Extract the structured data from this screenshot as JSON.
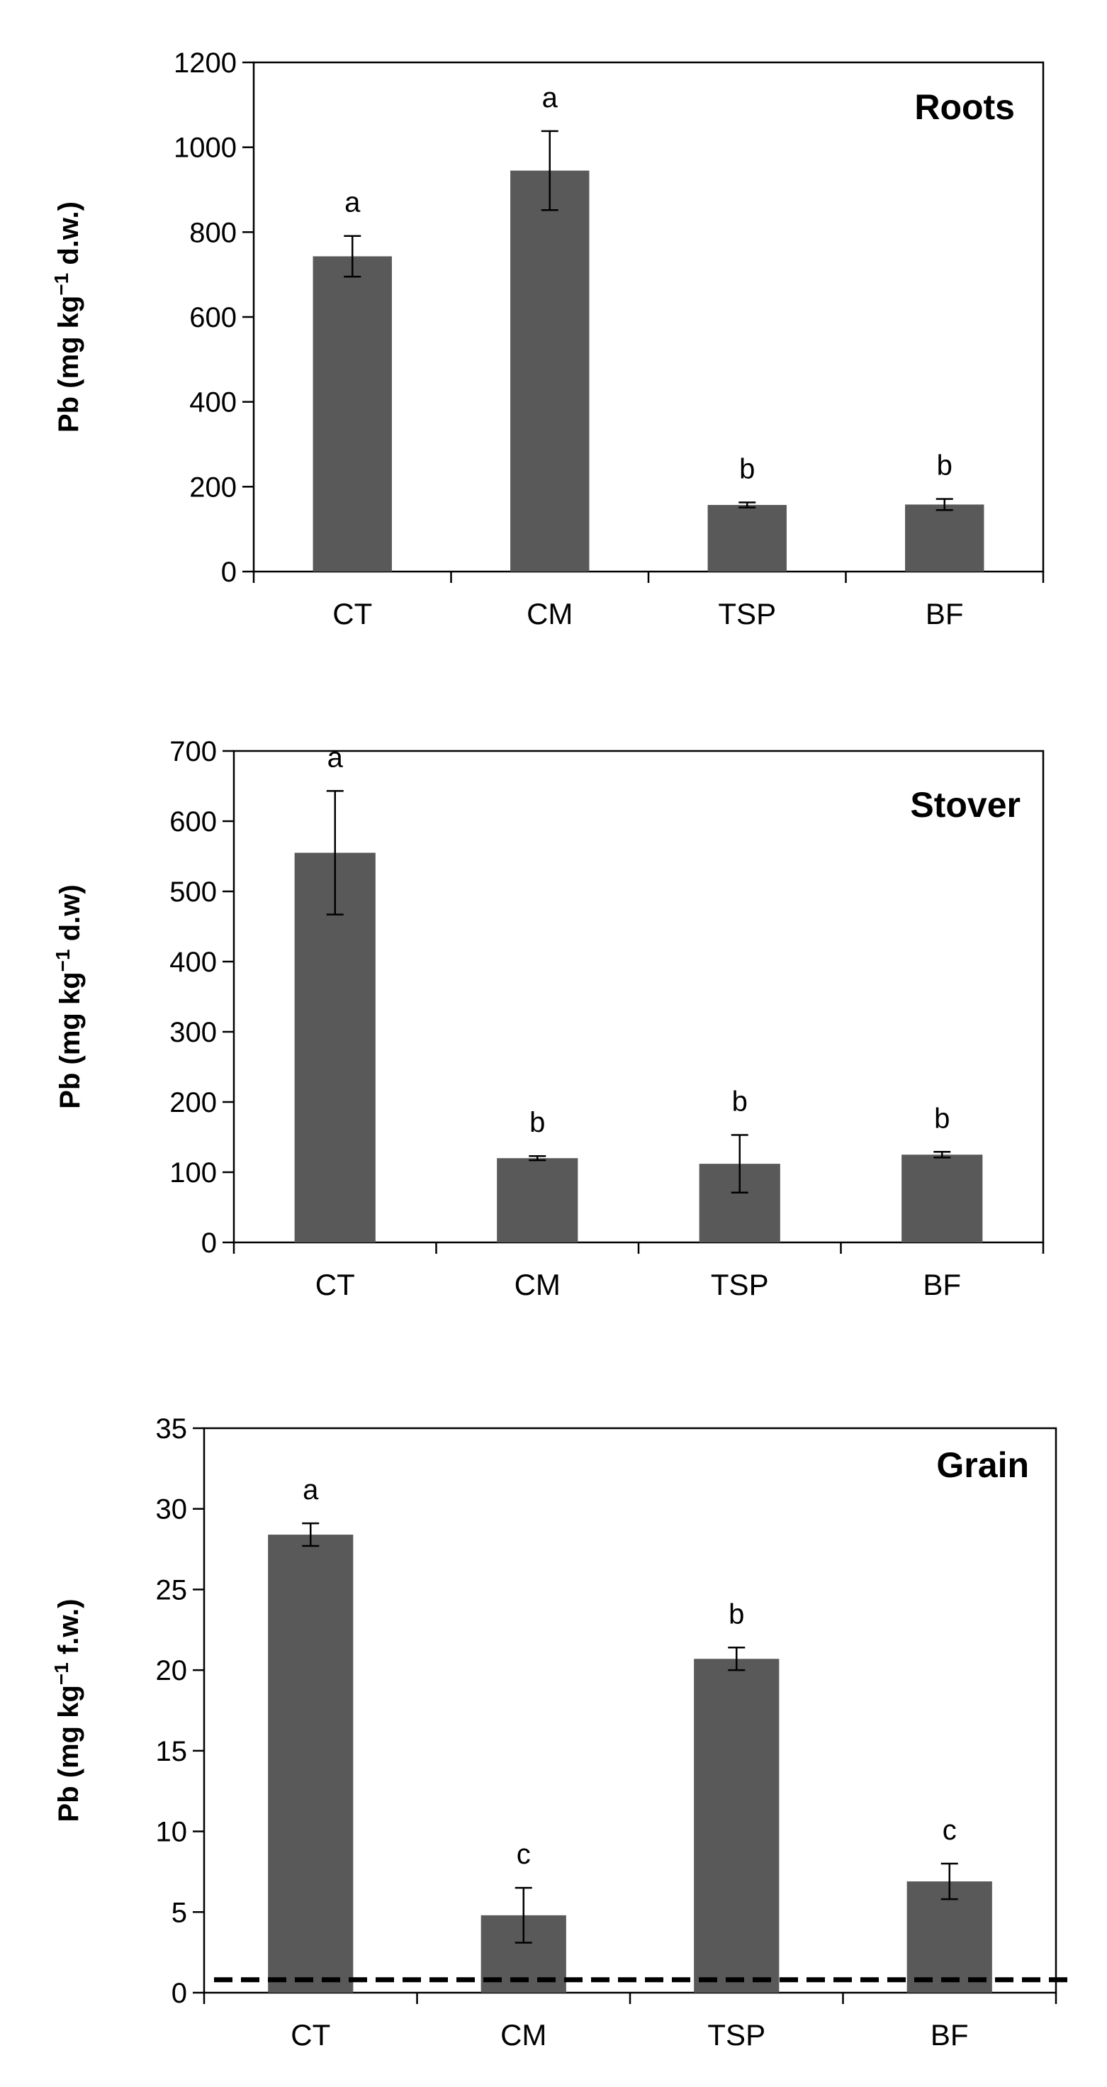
{
  "chart_data": [
    {
      "type": "bar",
      "title": "Roots",
      "ylabel": {
        "prefix": "Pb  (mg kg",
        "sup": "−1",
        "suffix": " d.w.)"
      },
      "categories": [
        "CT",
        "CM",
        "TSP",
        "BF"
      ],
      "values": [
        743,
        945,
        157,
        158
      ],
      "errors": [
        48,
        93,
        6,
        13
      ],
      "significance": [
        "a",
        "a",
        "b",
        "b"
      ],
      "ylim": [
        0,
        1200
      ],
      "yticks": [
        0,
        200,
        400,
        600,
        800,
        1000,
        1200
      ],
      "bar_color": "#595959"
    },
    {
      "type": "bar",
      "title": "Stover",
      "ylabel": {
        "prefix": "Pb (mg kg",
        "sup": "−1",
        "suffix": " d.w)"
      },
      "categories": [
        "CT",
        "CM",
        "TSP",
        "BF"
      ],
      "values": [
        555,
        120,
        112,
        125
      ],
      "errors": [
        88,
        3,
        41,
        4
      ],
      "significance": [
        "a",
        "b",
        "b",
        "b"
      ],
      "ylim": [
        0,
        700
      ],
      "yticks": [
        0,
        100,
        200,
        300,
        400,
        500,
        600,
        700
      ],
      "bar_color": "#595959"
    },
    {
      "type": "bar",
      "title": "Grain",
      "ylabel": {
        "prefix": "Pb (mg kg",
        "sup": "−1",
        "suffix": " f.w.)"
      },
      "categories": [
        "CT",
        "CM",
        "TSP",
        "BF"
      ],
      "values": [
        28.4,
        4.8,
        20.7,
        6.9
      ],
      "errors": [
        0.7,
        1.7,
        0.7,
        1.1
      ],
      "significance": [
        "a",
        "c",
        "b",
        "c"
      ],
      "ylim": [
        0,
        35
      ],
      "yticks": [
        0,
        5,
        10,
        15,
        20,
        25,
        30,
        35
      ],
      "reference_line": 0.8,
      "bar_color": "#595959"
    }
  ]
}
